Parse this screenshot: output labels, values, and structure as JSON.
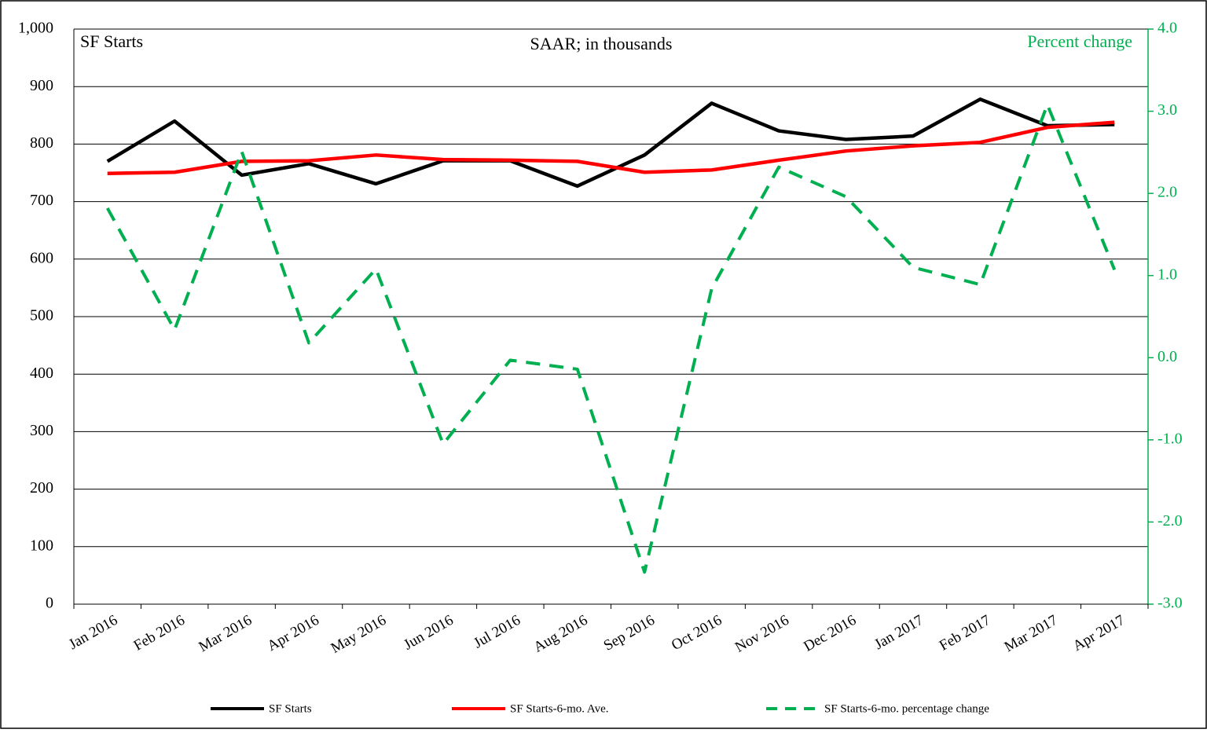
{
  "chart_data": {
    "type": "line",
    "title": "SAAR; in thousands",
    "y_label": "SF Starts",
    "y2_label": "Percent change",
    "categories": [
      "Jan 2016",
      "Feb 2016",
      "Mar 2016",
      "Apr 2016",
      "May 2016",
      "Jun 2016",
      "Jul 2016",
      "Aug 2016",
      "Sep 2016",
      "Oct 2016",
      "Nov 2016",
      "Dec 2016",
      "Jan 2017",
      "Feb 2017",
      "Mar 2017",
      "Apr 2017"
    ],
    "series": [
      {
        "name": "SF Starts",
        "color": "#000000",
        "dashed": false,
        "values": [
          770,
          840,
          746,
          766,
          731,
          771,
          771,
          727,
          781,
          871,
          823,
          808,
          814,
          878,
          832,
          834
        ]
      },
      {
        "name": "SF Starts-6-mo. Ave.",
        "color": "#ff0000",
        "dashed": false,
        "values": [
          749,
          751,
          770,
          771,
          781,
          773,
          772,
          770,
          751,
          755,
          772,
          788,
          797,
          803,
          829,
          838
        ]
      },
      {
        "name": "SF Starts-6-mo. percentage change",
        "color": "#00b050",
        "dashed": true,
        "axis": "y2",
        "values": [
          1.82,
          0.34,
          2.51,
          0.18,
          1.08,
          -1.05,
          -0.03,
          -0.14,
          -2.61,
          0.84,
          2.32,
          1.96,
          1.1,
          0.89,
          3.08,
          1.07
        ]
      }
    ],
    "ylim": [
      0,
      1000
    ],
    "yticks": [
      0,
      100,
      200,
      300,
      400,
      500,
      600,
      700,
      800,
      900,
      {
        "value": 1000,
        "label": "1,000"
      }
    ],
    "y2lim": [
      -3,
      4
    ],
    "y2ticks": [
      {
        "value": -3,
        "label": "-3.0"
      },
      {
        "value": -2,
        "label": "-2.0"
      },
      {
        "value": -1,
        "label": "-1.0"
      },
      {
        "value": 0,
        "label": "0.0"
      },
      {
        "value": 1,
        "label": "1.0"
      },
      {
        "value": 2,
        "label": "2.0"
      },
      {
        "value": 3,
        "label": "3.0"
      },
      {
        "value": 4,
        "label": "4.0"
      }
    ],
    "y2color": "#00b050",
    "grid": true,
    "legend": "bottom"
  }
}
